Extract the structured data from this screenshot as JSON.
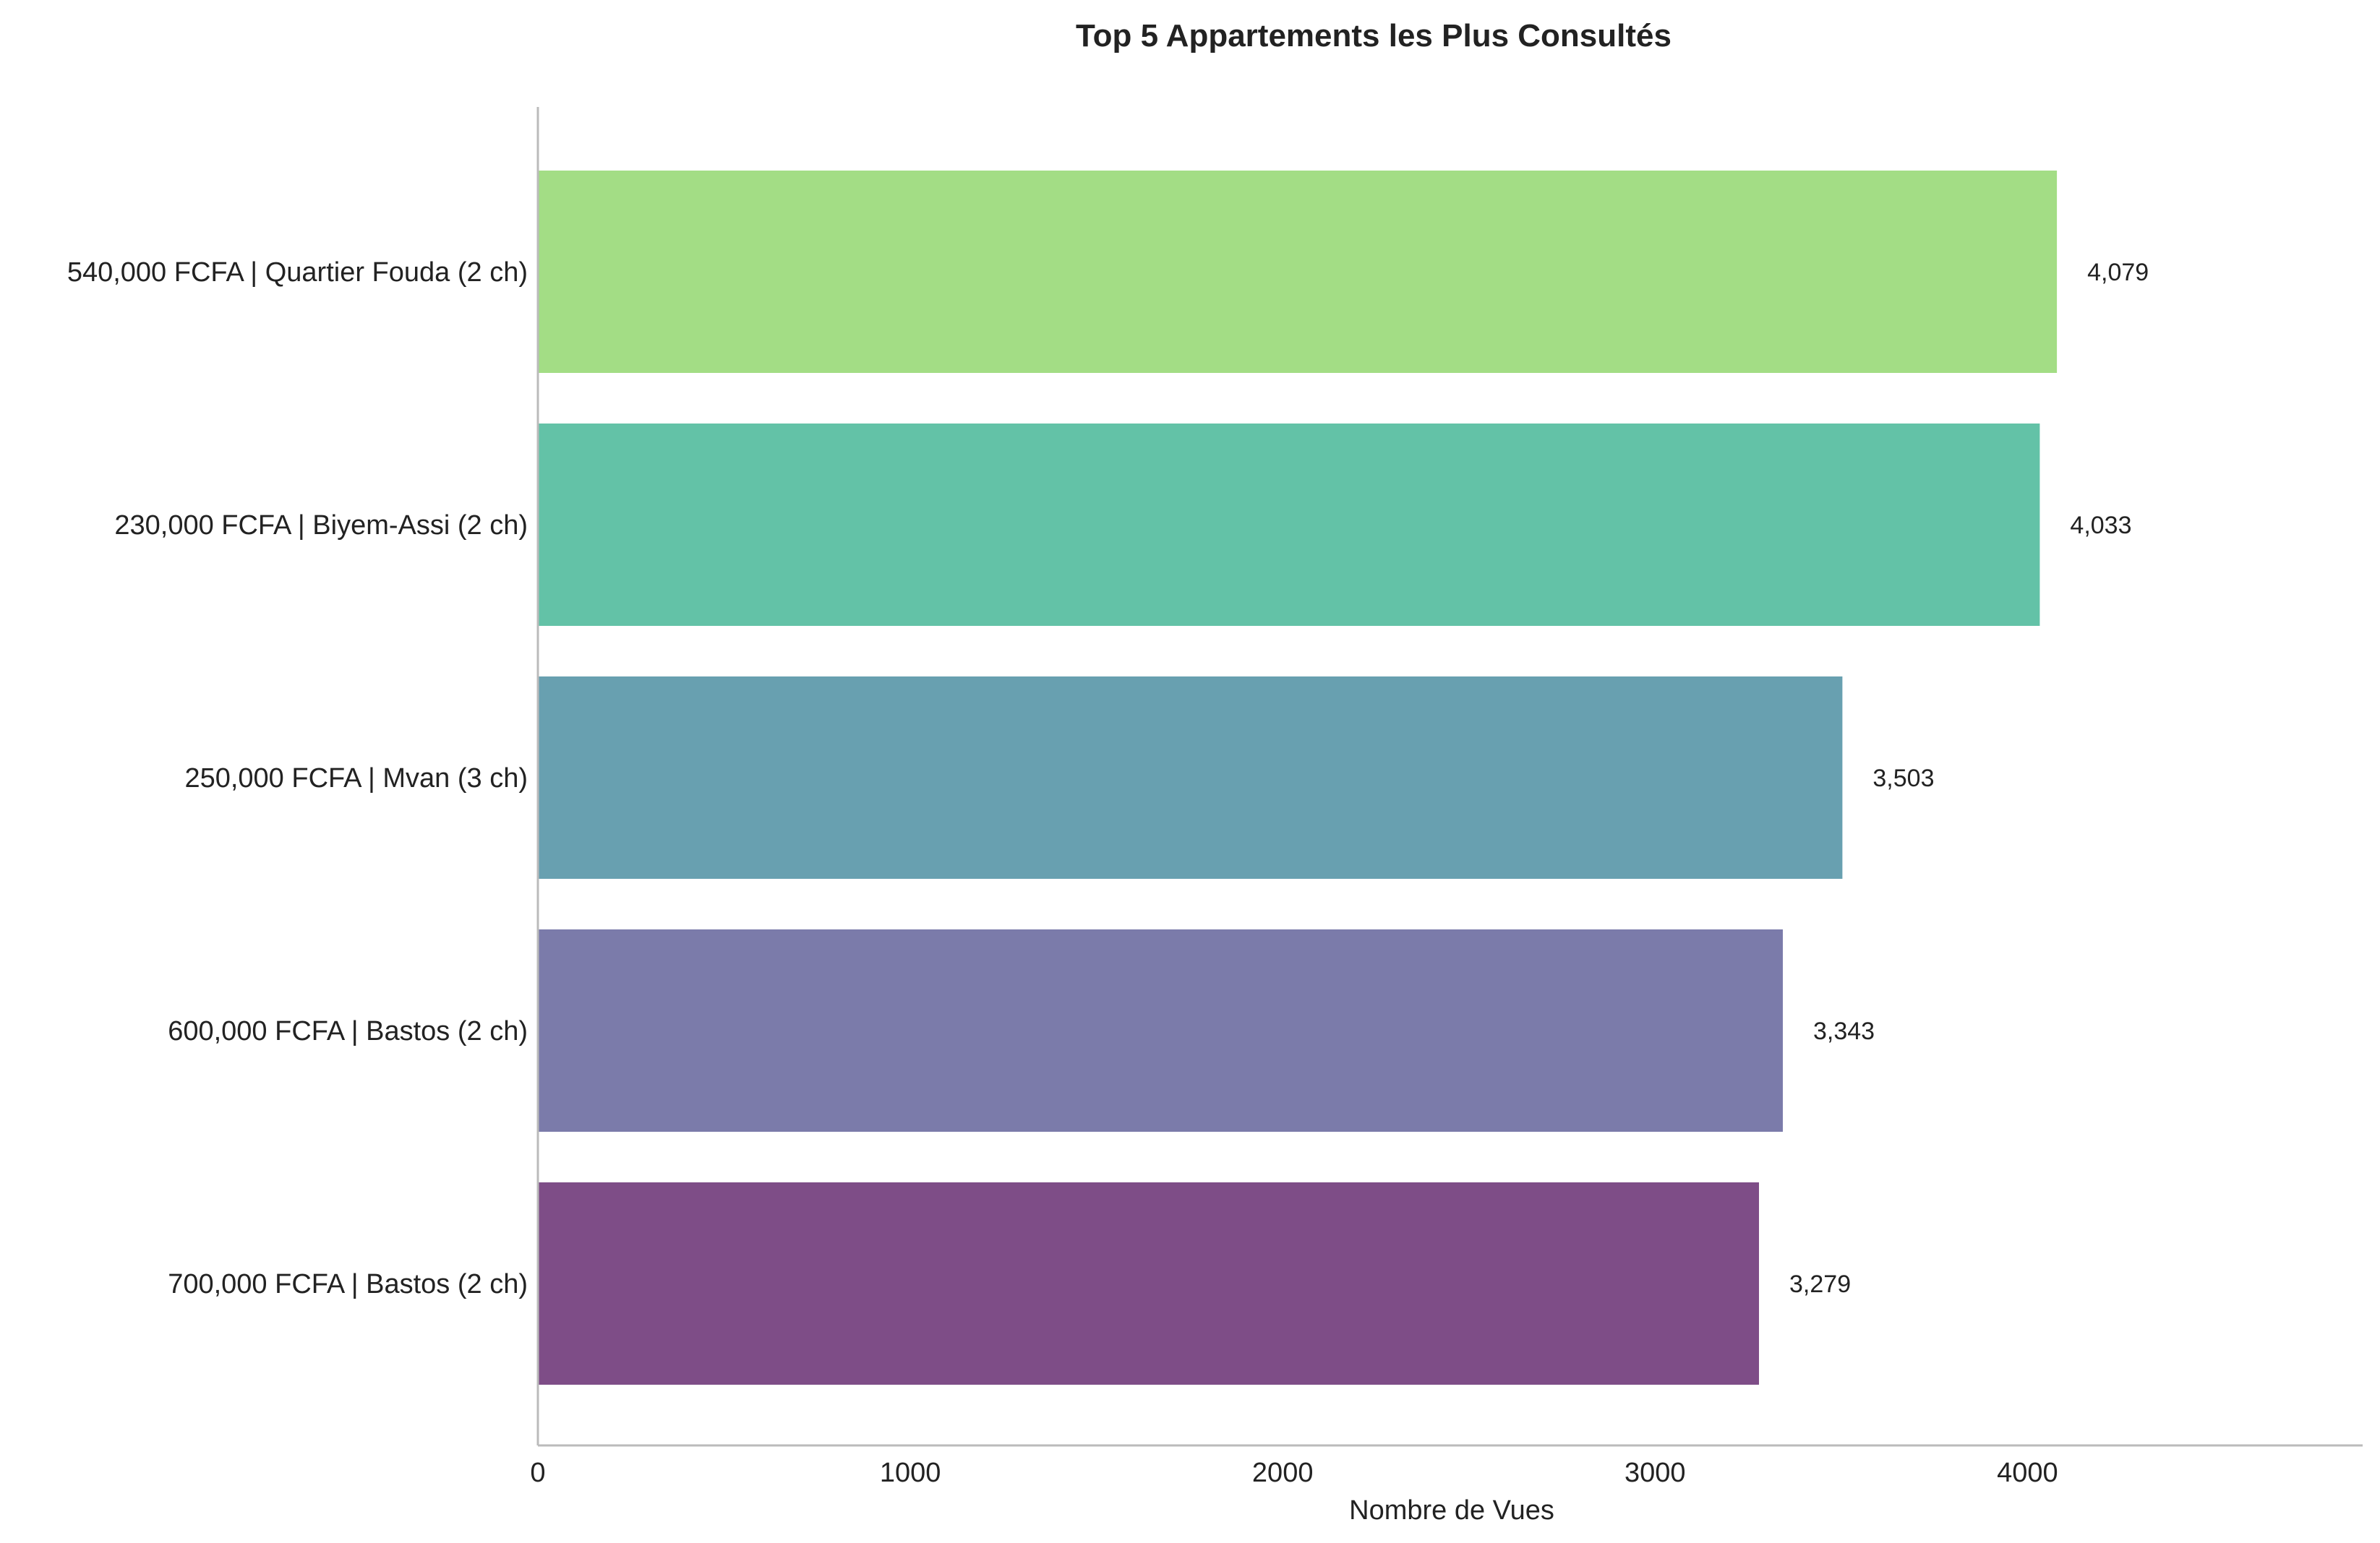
{
  "chart_data": {
    "type": "bar",
    "orientation": "horizontal",
    "title": "Top 5 Appartements les Plus Consultés",
    "xlabel": "Nombre de Vues",
    "ylabel": "",
    "xlim": [
      0,
      4900
    ],
    "xticks": [
      "0",
      "1000",
      "2000",
      "3000",
      "4000"
    ],
    "grid": false,
    "categories": [
      "540,000 FCFA | Quartier Fouda (2 ch)",
      "230,000 FCFA | Biyem-Assi (2 ch)",
      "250,000 FCFA | Mvan (3 ch)",
      "600,000 FCFA | Bastos (2 ch)",
      "700,000 FCFA | Bastos (2 ch)"
    ],
    "values": [
      4079,
      4033,
      3503,
      3343,
      3279
    ],
    "value_labels": [
      "4,079",
      "4,033",
      "3,503",
      "3,343",
      "3,279"
    ],
    "colors": [
      "#a3dd85",
      "#63c2a7",
      "#68a0b0",
      "#7b7baa",
      "#7e4d87"
    ]
  }
}
